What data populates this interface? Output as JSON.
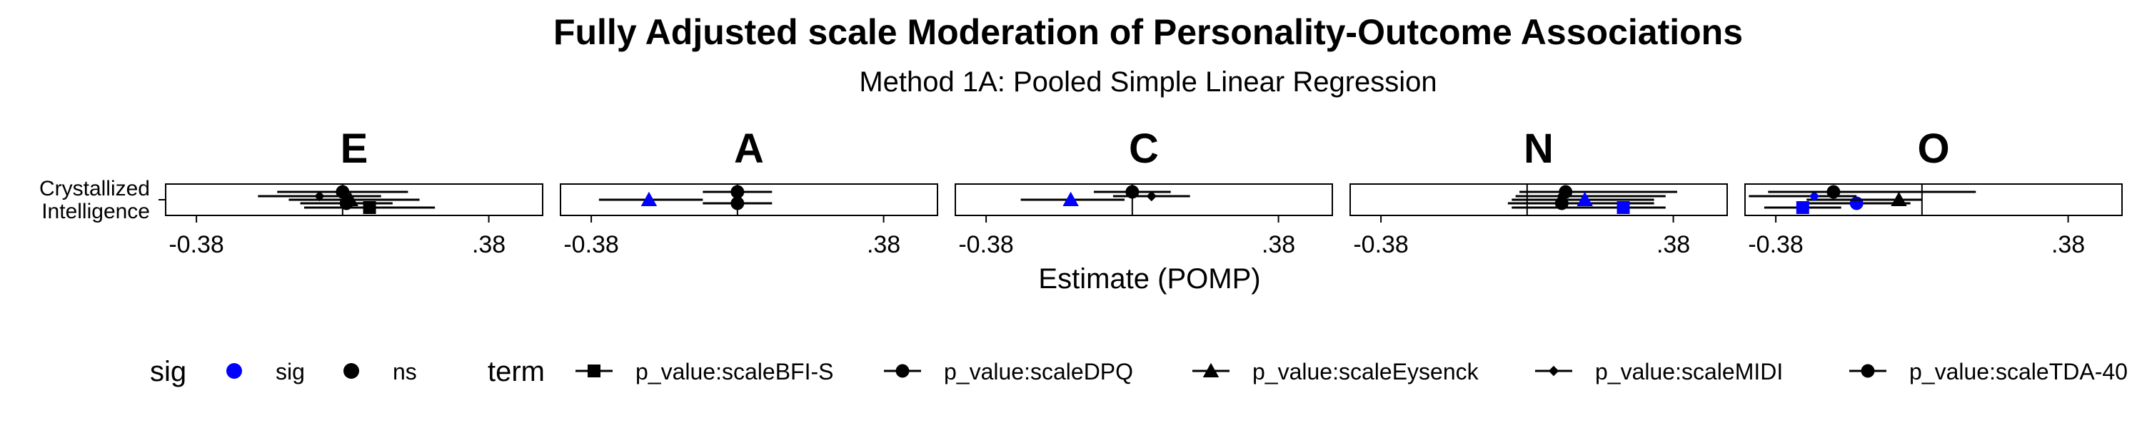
{
  "chart_data": {
    "type": "forest",
    "title": "Fully Adjusted scale Moderation of Personality-Outcome Associations",
    "subtitle": "Method 1A: Pooled Simple Linear Regression",
    "xlabel": "Estimate (POMP)",
    "ylabel_lines": [
      "Crystallized",
      "Intelligence"
    ],
    "x_ticks": [
      {
        "value": -0.38,
        "label": "-0.38"
      },
      {
        "value": 0.38,
        "label": ".38"
      }
    ],
    "xlim": [
      -0.46,
      0.52
    ],
    "reference_line": 0,
    "colors": {
      "sig": "#0000ff",
      "ns": "#000000"
    },
    "panels": [
      {
        "label": "E",
        "estimates": [
          {
            "term": "p_value:scaleTDA-40",
            "est": 0.0,
            "lo": -0.17,
            "hi": 0.17,
            "sig": "ns"
          },
          {
            "term": "p_value:scaleMIDI",
            "est": -0.06,
            "lo": -0.22,
            "hi": 0.1,
            "sig": "ns"
          },
          {
            "term": "p_value:scaleEysenck",
            "est": 0.02,
            "lo": -0.14,
            "hi": 0.2,
            "sig": "ns"
          },
          {
            "term": "p_value:scaleDPQ",
            "est": 0.01,
            "lo": -0.11,
            "hi": 0.13,
            "sig": "ns"
          },
          {
            "term": "p_value:scaleBFI-S",
            "est": 0.07,
            "lo": -0.1,
            "hi": 0.24,
            "sig": "ns"
          }
        ]
      },
      {
        "label": "A",
        "estimates": [
          {
            "term": "p_value:scaleTDA-40",
            "est": 0.0,
            "lo": -0.09,
            "hi": 0.09,
            "sig": "ns"
          },
          {
            "term": "p_value:scaleEysenck",
            "est": -0.23,
            "lo": -0.36,
            "hi": -0.09,
            "sig": "sig"
          },
          {
            "term": "p_value:scaleDPQ",
            "est": 0.0,
            "lo": -0.09,
            "hi": 0.09,
            "sig": "ns"
          }
        ]
      },
      {
        "label": "C",
        "estimates": [
          {
            "term": "p_value:scaleTDA-40",
            "est": 0.0,
            "lo": -0.1,
            "hi": 0.1,
            "sig": "ns"
          },
          {
            "term": "p_value:scaleMIDI",
            "est": 0.05,
            "lo": -0.05,
            "hi": 0.15,
            "sig": "ns"
          },
          {
            "term": "p_value:scaleEysenck",
            "est": -0.16,
            "lo": -0.29,
            "hi": -0.02,
            "sig": "sig"
          }
        ]
      },
      {
        "label": "N",
        "estimates": [
          {
            "term": "p_value:scaleTDA-40",
            "est": 0.1,
            "lo": -0.02,
            "hi": 0.39,
            "sig": "ns"
          },
          {
            "term": "p_value:scaleMIDI",
            "est": 0.09,
            "lo": -0.03,
            "hi": 0.36,
            "sig": "ns"
          },
          {
            "term": "p_value:scaleDPQ",
            "est": 0.09,
            "lo": -0.05,
            "hi": 0.33,
            "sig": "ns"
          },
          {
            "term": "p_value:scaleEysenck",
            "est": 0.15,
            "lo": -0.04,
            "hi": 0.33,
            "sig": "sig"
          },
          {
            "term": "p_value:scaleBFI-S",
            "est": 0.25,
            "lo": -0.04,
            "hi": 0.36,
            "sig": "sig"
          }
        ]
      },
      {
        "label": "O",
        "estimates": [
          {
            "term": "p_value:scaleDPQ",
            "est": -0.17,
            "lo": -0.31,
            "hi": -0.03,
            "sig": "sig"
          },
          {
            "term": "p_value:scaleEysenck",
            "est": -0.06,
            "lo": -0.3,
            "hi": 0.0,
            "sig": "ns"
          },
          {
            "term": "p_value:scaleMIDI",
            "est": -0.28,
            "lo": -0.45,
            "hi": -0.17,
            "sig": "sig"
          },
          {
            "term": "p_value:scaleTDA-40",
            "est": -0.23,
            "lo": -0.4,
            "hi": 0.14,
            "sig": "ns"
          },
          {
            "term": "p_value:scaleBFI-S",
            "est": -0.31,
            "lo": -0.41,
            "hi": -0.21,
            "sig": "sig"
          }
        ]
      }
    ],
    "legend": {
      "position": "bottom",
      "sig_title": "sig",
      "sig_items": [
        {
          "label": "sig",
          "color": "#0000ff"
        },
        {
          "label": "ns",
          "color": "#000000"
        }
      ],
      "term_title": "term",
      "term_items": [
        {
          "label": "p_value:scaleBFI-S",
          "shape": "square"
        },
        {
          "label": "p_value:scaleDPQ",
          "shape": "circle"
        },
        {
          "label": "p_value:scaleEysenck",
          "shape": "triangle"
        },
        {
          "label": "p_value:scaleMIDI",
          "shape": "diamond"
        },
        {
          "label": "p_value:scaleTDA-40",
          "shape": "circle"
        }
      ]
    }
  }
}
